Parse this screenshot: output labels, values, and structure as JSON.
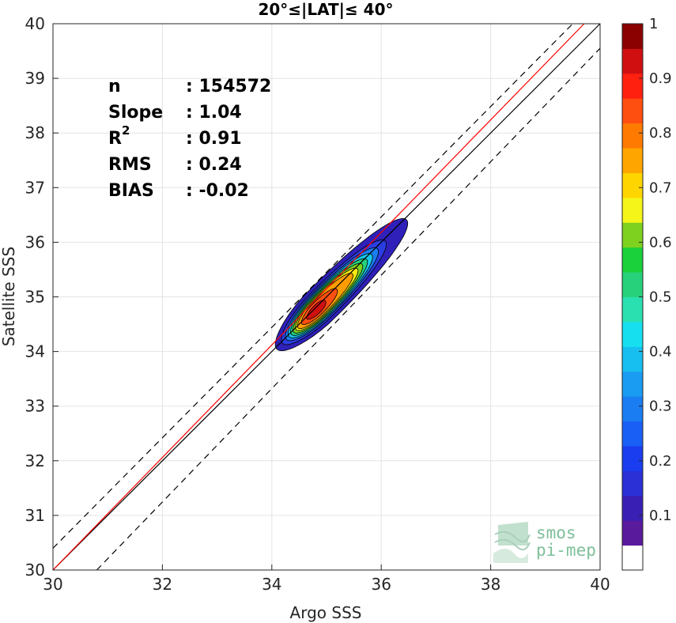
{
  "chart_data": {
    "type": "contour",
    "title": "20°≤|LAT|≤ 40°",
    "xlabel": "Argo SSS",
    "ylabel": "Satellite SSS",
    "xlim": [
      30,
      40
    ],
    "ylim": [
      30,
      40
    ],
    "xticks": [
      30,
      32,
      34,
      36,
      38,
      40
    ],
    "yticks": [
      30,
      31,
      32,
      33,
      34,
      35,
      36,
      37,
      38,
      39,
      40
    ],
    "grid": true,
    "stats": [
      {
        "label": "n",
        "value": ": 154572"
      },
      {
        "label": "Slope",
        "value": ": 1.04"
      },
      {
        "label": "R",
        "superscript": "2",
        "value": ": 0.91"
      },
      {
        "label": "RMS",
        "value": ": 0.24"
      },
      {
        "label": "BIAS",
        "value": ": -0.02"
      }
    ],
    "lines": [
      {
        "name": "one-to-one",
        "color": "#000000",
        "dash": "solid",
        "points": [
          [
            30,
            30
          ],
          [
            40,
            40
          ]
        ]
      },
      {
        "name": "regression",
        "color": "#ff0000",
        "dash": "solid",
        "points": [
          [
            30,
            30
          ],
          [
            40,
            40.3
          ]
        ]
      },
      {
        "name": "upper-bound",
        "color": "#000000",
        "dash": "dashed",
        "points": [
          [
            30,
            30.4
          ],
          [
            39.5,
            40
          ]
        ]
      },
      {
        "name": "lower-bound",
        "color": "#000000",
        "dash": "dashed",
        "points": [
          [
            30.8,
            30
          ],
          [
            40,
            39.55
          ]
        ]
      }
    ],
    "density": {
      "center": [
        34.8,
        34.75
      ],
      "trend": [
        0.707,
        0.707
      ],
      "levels": [
        {
          "level": 0.05,
          "color": "#2e20b8",
          "r_low": 1.0,
          "r_high": 2.35,
          "minor": 0.34
        },
        {
          "level": 0.15,
          "color": "#2a3de0",
          "r_low": 0.85,
          "r_high": 1.8,
          "minor": 0.28
        },
        {
          "level": 0.25,
          "color": "#1a7df2",
          "r_low": 0.75,
          "r_high": 1.6,
          "minor": 0.25
        },
        {
          "level": 0.35,
          "color": "#17c7e8",
          "r_low": 0.68,
          "r_high": 1.45,
          "minor": 0.23
        },
        {
          "level": 0.45,
          "color": "#27d17c",
          "r_low": 0.62,
          "r_high": 1.32,
          "minor": 0.21
        },
        {
          "level": 0.55,
          "color": "#7fd11f",
          "r_low": 0.56,
          "r_high": 1.2,
          "minor": 0.19
        },
        {
          "level": 0.65,
          "color": "#f5ea12",
          "r_low": 0.5,
          "r_high": 1.08,
          "minor": 0.17
        },
        {
          "level": 0.75,
          "color": "#ff9d00",
          "r_low": 0.45,
          "r_high": 0.95,
          "minor": 0.15
        },
        {
          "level": 0.85,
          "color": "#ff4f10",
          "r_low": 0.35,
          "r_high": 0.55,
          "minor": 0.12
        },
        {
          "level": 0.95,
          "color": "#d01010",
          "r_low": 0.22,
          "r_high": 0.25,
          "minor": 0.08
        }
      ]
    },
    "colorbar": {
      "range": [
        0,
        1
      ],
      "ticks": [
        {
          "value": 0.1,
          "label": "0.1"
        },
        {
          "value": 0.2,
          "label": "0.2"
        },
        {
          "value": 0.3,
          "label": "0.3"
        },
        {
          "value": 0.4,
          "label": "0.4"
        },
        {
          "value": 0.5,
          "label": "0.5"
        },
        {
          "value": 0.6,
          "label": "0.6"
        },
        {
          "value": 0.7,
          "label": "0.7"
        },
        {
          "value": 0.8,
          "label": "0.8"
        },
        {
          "value": 0.9,
          "label": "0.9"
        },
        {
          "value": 1.0,
          "label": "1"
        }
      ],
      "colors": [
        "#ffffff",
        "#5a1a9c",
        "#3a1fb5",
        "#2a2fd6",
        "#1a3df0",
        "#1a5ff5",
        "#1a7df2",
        "#1a9cf2",
        "#17bff0",
        "#16e0f0",
        "#2ae0b0",
        "#27d17c",
        "#1ad13c",
        "#7fd11f",
        "#f5f51a",
        "#ffd500",
        "#ffa500",
        "#ff7a00",
        "#ff4f10",
        "#ff2010",
        "#d01010",
        "#8b0000"
      ]
    }
  },
  "logo": {
    "line1": "smos",
    "line2": "pi-mep"
  }
}
